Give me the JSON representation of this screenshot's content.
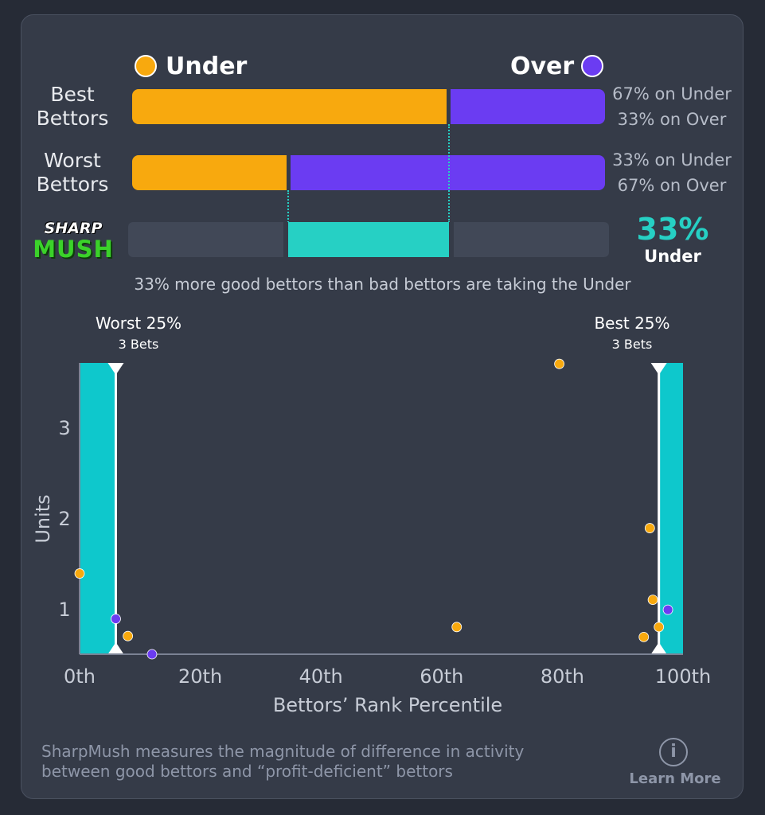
{
  "legend": {
    "under_label": "Under",
    "over_label": "Over",
    "under_color": "#f8a90e",
    "over_color": "#6b3cf2"
  },
  "rows": [
    {
      "label_line1": "Best",
      "label_line2": "Bettors",
      "under_pct": 67,
      "over_pct": 33,
      "under_text": "67% on Under",
      "over_text": "33% on Over"
    },
    {
      "label_line1": "Worst",
      "label_line2": "Bettors",
      "under_pct": 33,
      "over_pct": 67,
      "under_text": "33% on Under",
      "over_text": "67% on Over"
    }
  ],
  "logo": {
    "line1": "SHARP",
    "line2": "MUSH"
  },
  "diff": {
    "value": "33%",
    "label": "Under",
    "color": "#26d0c4"
  },
  "summary": "33% more good bettors than bad bettors are taking the Under",
  "zones": {
    "worst": {
      "label": "Worst 25%",
      "sub": "3 Bets"
    },
    "best": {
      "label": "Best 25%",
      "sub": "3 Bets"
    }
  },
  "chart_data": {
    "type": "scatter",
    "xlabel": "Bettors’ Rank Percentile",
    "ylabel": "Units",
    "xticks": [
      "0th",
      "20th",
      "40th",
      "60th",
      "80th",
      "100th"
    ],
    "yticks": [
      "1",
      "2",
      "3"
    ],
    "xlim": [
      0,
      100
    ],
    "ylim": [
      0.5,
      3.7
    ],
    "zone_markers": [
      6,
      96
    ],
    "series": [
      {
        "name": "Under",
        "color": "#f8a90e",
        "points": [
          [
            0,
            1.39
          ],
          [
            8,
            0.7
          ],
          [
            62.5,
            0.8
          ],
          [
            79.5,
            3.7
          ],
          [
            94.5,
            1.89
          ],
          [
            95,
            1.1
          ],
          [
            93.5,
            0.69
          ],
          [
            96,
            0.8
          ]
        ]
      },
      {
        "name": "Over",
        "color": "#6b3cf2",
        "points": [
          [
            6,
            0.89
          ],
          [
            12,
            0.5
          ],
          [
            97.5,
            0.99
          ]
        ]
      }
    ]
  },
  "footer": {
    "line1": "SharpMush measures the magnitude of difference in activity",
    "line2": "between good bettors and “profit-deficient” bettors",
    "learn_more": "Learn More",
    "info_glyph": "i"
  }
}
